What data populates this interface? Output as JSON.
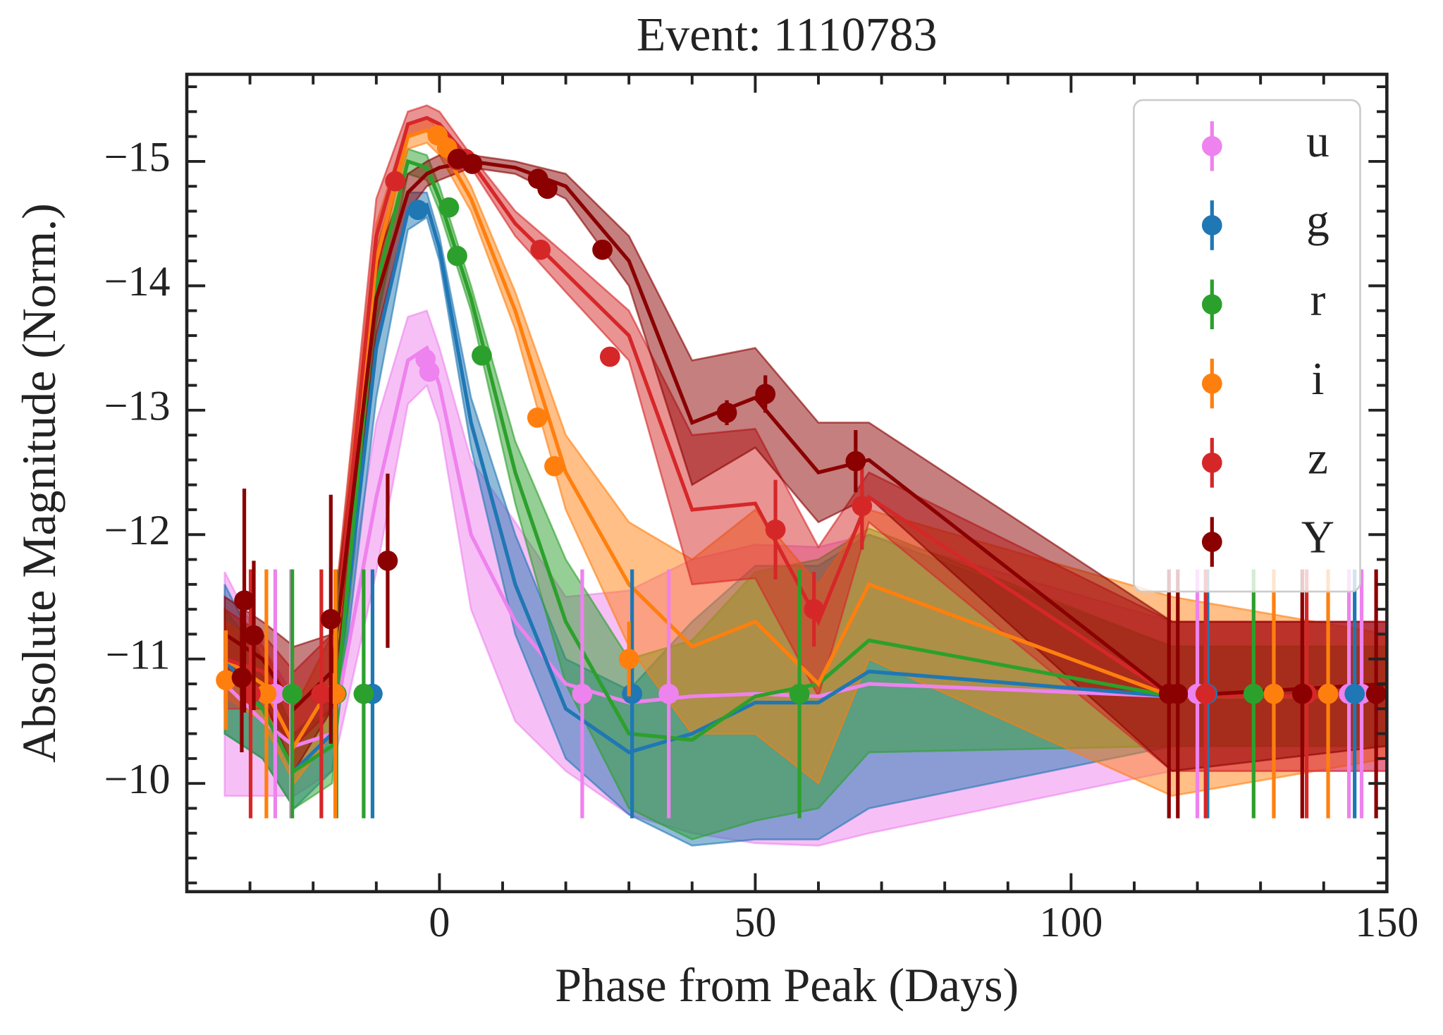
{
  "chart_data": {
    "type": "light_curve",
    "title": "Event: 1110783",
    "xlabel": "Phase from Peak (Days)",
    "ylabel": "Absolute Magnitude (Norm.)",
    "xlim": [
      -40,
      150
    ],
    "ylim": [
      -9.13,
      -15.7
    ],
    "xticks": [
      0,
      50,
      100,
      150
    ],
    "yticks": [
      {
        "value": -15,
        "label": "−15"
      },
      {
        "value": -14,
        "label": "−14"
      },
      {
        "value": -13,
        "label": "−13"
      },
      {
        "value": -12,
        "label": "−12"
      },
      {
        "value": -11,
        "label": "−11"
      },
      {
        "value": -10,
        "label": "−10"
      }
    ],
    "xminorticks": [
      -30,
      -20,
      -10,
      10,
      20,
      30,
      40,
      60,
      70,
      80,
      90,
      110,
      120,
      130,
      140
    ],
    "yminorticks": [
      -15.6,
      -15.4,
      -15.2,
      -14.8,
      -14.6,
      -14.4,
      -14.2,
      -13.8,
      -13.6,
      -13.4,
      -13.2,
      -12.8,
      -12.6,
      -12.4,
      -12.2,
      -11.8,
      -11.6,
      -11.4,
      -11.2,
      -10.8,
      -10.6,
      -10.4,
      -10.2,
      -9.8,
      -9.6,
      -9.4,
      -9.2
    ],
    "legend": "upper right",
    "model_x": [
      -34,
      -28,
      -23,
      -17,
      -10,
      -5,
      -2,
      0,
      5,
      12,
      20,
      30,
      40,
      50,
      60,
      68,
      116,
      150
    ],
    "series": [
      {
        "name": "u",
        "color": "#ee82ee",
        "x": [
          -26,
          -23.5,
          -2.2,
          -1.6,
          22.6,
          36.3,
          120,
          144,
          146
        ],
        "values": [
          -10.72,
          -10.72,
          -13.41,
          -13.31,
          -10.72,
          -10.72,
          -10.72,
          -10.72,
          -10.72
        ],
        "errors": [
          1.0,
          1.0,
          0.05,
          0.05,
          1.0,
          1.0,
          1.0,
          1.0,
          1.0
        ],
        "model_values": [
          -10.8,
          -10.5,
          -10.3,
          -10.4,
          -12.3,
          -13.4,
          -13.5,
          -13.2,
          -12.0,
          -11.3,
          -10.8,
          -10.65,
          -10.7,
          -10.72,
          -10.7,
          -10.8,
          -10.7,
          -10.7
        ],
        "model_errors": [
          0.9,
          0.6,
          0.4,
          0.3,
          0.6,
          0.35,
          0.3,
          0.3,
          0.6,
          0.8,
          0.7,
          0.9,
          1.1,
          1.2,
          1.2,
          1.2,
          0.6,
          0.6
        ]
      },
      {
        "name": "g",
        "color": "#1f77b4",
        "x": [
          -10.6,
          -3.4,
          30.5,
          121.6,
          144.9
        ],
        "values": [
          -10.72,
          -14.61,
          -10.72,
          -10.72,
          -10.72
        ],
        "errors": [
          1.0,
          0.05,
          1.0,
          1.0,
          1.0
        ],
        "model_values": [
          -11.0,
          -10.6,
          -10.1,
          -10.4,
          -13.5,
          -14.6,
          -14.65,
          -14.3,
          -12.9,
          -11.6,
          -10.6,
          -10.25,
          -10.4,
          -10.65,
          -10.65,
          -10.9,
          -10.7,
          -10.7
        ],
        "model_errors": [
          0.6,
          0.4,
          0.3,
          0.3,
          0.4,
          0.15,
          0.1,
          0.1,
          0.2,
          0.4,
          0.4,
          0.5,
          0.9,
          1.1,
          1.1,
          1.1,
          0.4,
          0.4
        ]
      },
      {
        "name": "r",
        "color": "#2ca02c",
        "x": [
          -23.3,
          -16.3,
          -12,
          1.5,
          2.8,
          6.7,
          57,
          128.9
        ],
        "values": [
          -10.72,
          -10.72,
          -10.72,
          -14.63,
          -14.24,
          -13.44,
          -10.72,
          -10.72
        ],
        "errors": [
          1.0,
          1.0,
          1.0,
          0.05,
          0.05,
          0.05,
          1.0,
          1.0
        ],
        "model_values": [
          -10.9,
          -10.6,
          -10.1,
          -10.3,
          -14.0,
          -15.0,
          -14.95,
          -14.7,
          -13.9,
          -12.5,
          -11.3,
          -10.4,
          -10.35,
          -10.7,
          -10.8,
          -11.15,
          -10.7,
          -10.7
        ],
        "model_errors": [
          0.5,
          0.4,
          0.3,
          0.3,
          0.3,
          0.1,
          0.1,
          0.1,
          0.1,
          0.25,
          0.5,
          0.6,
          0.8,
          1.0,
          1.0,
          0.9,
          0.4,
          0.4
        ]
      },
      {
        "name": "i",
        "color": "#ff7f0e",
        "x": [
          -33.8,
          -27.4,
          -16.5,
          -0.3,
          1.2,
          15.5,
          18.2,
          30.0,
          132.1,
          140.7
        ],
        "values": [
          -10.83,
          -10.72,
          -10.72,
          -15.21,
          -15.11,
          -12.94,
          -12.55,
          -11.0,
          -10.72,
          -10.72
        ],
        "errors": [
          0.4,
          1.0,
          1.0,
          0.05,
          0.05,
          0.05,
          0.05,
          0.3,
          1.0,
          1.0
        ],
        "model_values": [
          -11.0,
          -10.8,
          -10.3,
          -10.8,
          -14.2,
          -15.2,
          -15.25,
          -15.15,
          -14.7,
          -13.8,
          -12.5,
          -11.6,
          -11.1,
          -11.3,
          -10.8,
          -11.6,
          -10.7,
          -10.7
        ],
        "model_errors": [
          0.3,
          0.3,
          0.3,
          0.4,
          0.3,
          0.1,
          0.1,
          0.1,
          0.1,
          0.15,
          0.3,
          0.5,
          0.7,
          0.9,
          0.8,
          0.6,
          0.8,
          0.5
        ]
      },
      {
        "name": "z",
        "color": "#d62728",
        "x": [
          -29.9,
          -18.7,
          -7.0,
          2.8,
          4.1,
          16.0,
          27.0,
          53.2,
          59.3,
          66.9,
          121.3,
          137.3
        ],
        "values": [
          -10.72,
          -10.72,
          -14.84,
          -15.01,
          -15.02,
          -14.29,
          -13.43,
          -12.04,
          -11.4,
          -12.23,
          -10.72,
          -10.72
        ],
        "errors": [
          1.0,
          1.0,
          0.05,
          0.05,
          0.05,
          0.05,
          0.05,
          0.4,
          0.3,
          0.35,
          1.0,
          1.0
        ],
        "model_values": [
          -11.0,
          -10.9,
          -10.6,
          -10.9,
          -14.4,
          -15.3,
          -15.35,
          -15.3,
          -15.0,
          -14.5,
          -14.1,
          -13.6,
          -12.2,
          -12.25,
          -11.3,
          -12.3,
          -10.7,
          -10.7
        ],
        "model_errors": [
          0.4,
          0.3,
          0.3,
          0.3,
          0.3,
          0.1,
          0.1,
          0.1,
          0.05,
          0.1,
          0.15,
          0.2,
          0.6,
          0.6,
          0.6,
          0.2,
          0.6,
          0.6
        ]
      },
      {
        "name": "Y",
        "color": "#8b0000",
        "x": [
          -30.9,
          -29.4,
          -31.3,
          -17.2,
          -8.2,
          2.9,
          5.2,
          15.6,
          17.1,
          25.8,
          45.5,
          51.6,
          65.9,
          115.5,
          116.9,
          136.6,
          148.3
        ],
        "values": [
          -11.47,
          -11.19,
          -10.85,
          -11.32,
          -11.79,
          -15.02,
          -14.98,
          -14.86,
          -14.78,
          -14.29,
          -12.98,
          -13.13,
          -12.59,
          -10.72,
          -10.72,
          -10.72,
          -10.72
        ],
        "errors": [
          0.9,
          0.6,
          0.6,
          1.0,
          0.7,
          0.05,
          0.05,
          0.05,
          0.05,
          0.05,
          0.1,
          0.15,
          0.25,
          1.0,
          1.0,
          1.0,
          1.0
        ],
        "model_values": [
          -11.2,
          -11.0,
          -10.6,
          -10.9,
          -13.9,
          -14.75,
          -14.9,
          -14.95,
          -15.0,
          -14.95,
          -14.8,
          -14.2,
          -12.9,
          -13.1,
          -12.5,
          -12.6,
          -10.7,
          -10.8
        ],
        "model_errors": [
          0.3,
          0.3,
          0.5,
          0.3,
          0.3,
          0.15,
          0.1,
          0.1,
          0.05,
          0.05,
          0.1,
          0.2,
          0.5,
          0.4,
          0.4,
          0.3,
          0.6,
          0.5
        ]
      }
    ]
  }
}
